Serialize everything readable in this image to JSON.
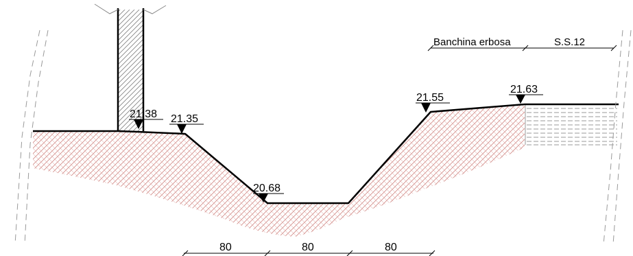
{
  "elevations": {
    "wall_top": "21.38",
    "left_bank": "21.35",
    "channel_bottom": "20.68",
    "right_bank": "21.55",
    "road_edge": "21.63"
  },
  "labels": {
    "banchina": "Banchina erbosa",
    "road": "S.S.12"
  },
  "dimensions": {
    "left_slope": "80",
    "bottom": "80",
    "right_slope": "80"
  },
  "colors": {
    "soil_hatch": "#c0504d",
    "line": "#000000",
    "road_hatch": "#9a9a9a"
  }
}
